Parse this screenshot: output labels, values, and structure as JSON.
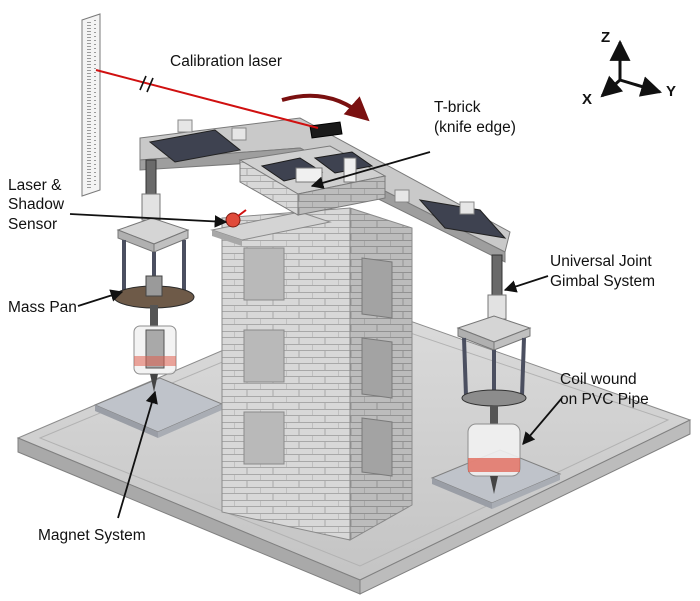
{
  "labels": {
    "calibration_laser": "Calibration laser",
    "t_brick_line1": "T-brick",
    "t_brick_line2": "(knife edge)",
    "laser_shadow_line1": "Laser &",
    "laser_shadow_line2": "Shadow",
    "laser_shadow_line3": "Sensor",
    "universal_joint_line1": "Universal Joint",
    "universal_joint_line2": "Gimbal System",
    "mass_pan": "Mass Pan",
    "coil_line1": "Coil wound",
    "coil_line2": "on PVC Pipe",
    "magnet_system": "Magnet System"
  },
  "axes": {
    "z": "Z",
    "x": "X",
    "y": "Y"
  },
  "colors": {
    "laser": "#d01010",
    "rotation_arrow": "#7a1010",
    "coil_band": "#e06050",
    "lego_grey": "#cfcfcf",
    "lego_dark": "#3e4250",
    "base": "#cdcdcd"
  }
}
